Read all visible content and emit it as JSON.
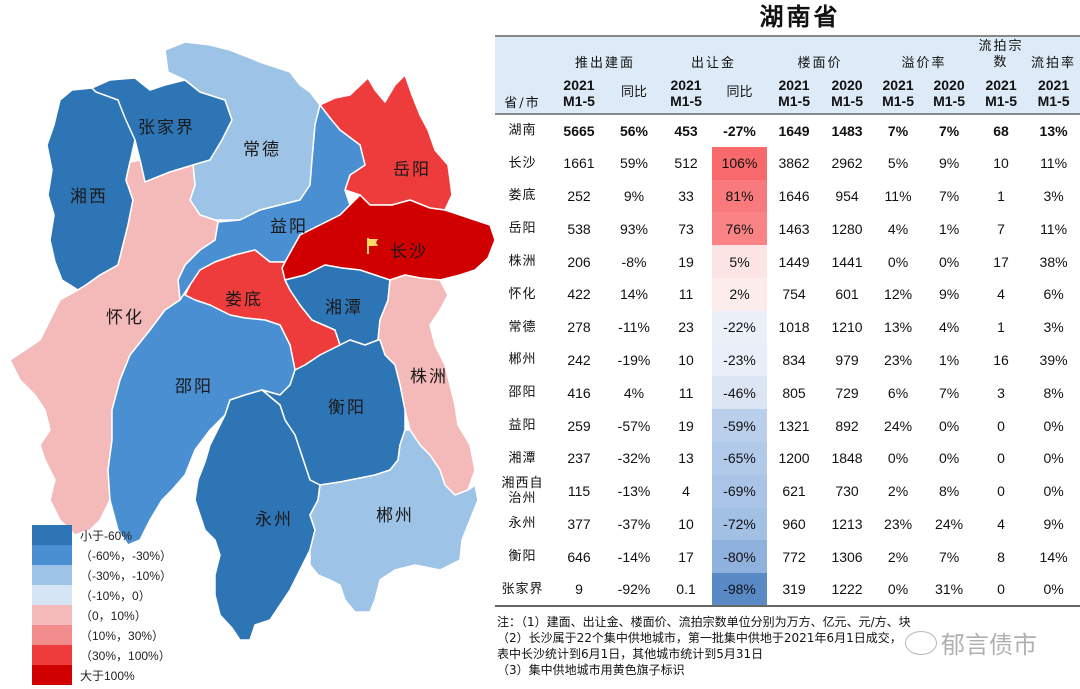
{
  "title": "湖南省",
  "colors": {
    "lt_neg60": "#2e75b6",
    "neg60_neg30": "#4a8fd1",
    "neg30_neg10": "#9dc3e6",
    "neg10_0": "#d6e5f5",
    "0_10": "#f4b9b9",
    "10_30": "#f28b8b",
    "30_100": "#ee3b3b",
    "gt_100": "#d00000",
    "flag": "#ffd966",
    "header_bg": "#ddeaf7"
  },
  "map": {
    "regions": [
      {
        "id": "xiangxi",
        "name": "湘西",
        "bin": "lt_neg60",
        "color": "#2e75b6"
      },
      {
        "id": "zhangjiajie",
        "name": "张家界",
        "bin": "lt_neg60",
        "color": "#2e75b6"
      },
      {
        "id": "changde",
        "name": "常德",
        "bin": "neg30_neg10",
        "color": "#9dc3e6"
      },
      {
        "id": "yueyang",
        "name": "岳阳",
        "bin": "30_100",
        "color": "#ee3b3b"
      },
      {
        "id": "yiyang",
        "name": "益阳",
        "bin": "neg60_neg30",
        "color": "#4a8fd1"
      },
      {
        "id": "changsha",
        "name": "长沙",
        "bin": "gt_100",
        "color": "#d00000",
        "flag": true
      },
      {
        "id": "huaihua",
        "name": "怀化",
        "bin": "0_10",
        "color": "#f4b9b9"
      },
      {
        "id": "loudi",
        "name": "娄底",
        "bin": "30_100",
        "color": "#ee3b3b"
      },
      {
        "id": "xiangtan",
        "name": "湘潭",
        "bin": "lt_neg60",
        "color": "#2e75b6"
      },
      {
        "id": "zhuzhou",
        "name": "株洲",
        "bin": "0_10",
        "color": "#f4b9b9"
      },
      {
        "id": "shaoyang",
        "name": "邵阳",
        "bin": "neg60_neg30",
        "color": "#4a8fd1"
      },
      {
        "id": "hengyang",
        "name": "衡阳",
        "bin": "lt_neg60",
        "color": "#2e75b6"
      },
      {
        "id": "yongzhou",
        "name": "永州",
        "bin": "lt_neg60",
        "color": "#2e75b6"
      },
      {
        "id": "chenzhou",
        "name": "郴州",
        "bin": "neg30_neg10",
        "color": "#9dc3e6"
      }
    ]
  },
  "legend": [
    {
      "label": "小于-60%",
      "color": "#2e75b6"
    },
    {
      "label": "（-60%，-30%）",
      "color": "#4a8fd1"
    },
    {
      "label": "（-30%，-10%）",
      "color": "#9dc3e6"
    },
    {
      "label": "（-10%，0）",
      "color": "#d6e5f5"
    },
    {
      "label": "（0，10%）",
      "color": "#f4b9b9"
    },
    {
      "label": "（10%，30%）",
      "color": "#f28b8b"
    },
    {
      "label": "（30%，100%）",
      "color": "#ee3b3b"
    },
    {
      "label": "大于100%",
      "color": "#d00000"
    }
  ],
  "table": {
    "header": {
      "province": "省/市",
      "groups": [
        "推出建面",
        "出让金",
        "楼面价",
        "溢价率",
        "流拍宗数",
        "流拍率"
      ],
      "sub": [
        "2021 M1-5",
        "同比",
        "2021 M1-5",
        "同比",
        "2021 M1-5",
        "2020 M1-5",
        "2021 M1-5",
        "2020 M1-5",
        "2021 M1-5",
        "2021 M1-5"
      ]
    },
    "rows": [
      {
        "name": "湖南",
        "area": "5665",
        "area_yoy": "56%",
        "fee": "453",
        "fee_yoy": "-27%",
        "price21": "1649",
        "price20": "1483",
        "prem21": "7%",
        "prem20": "7%",
        "fail": "68",
        "fail_rate": "13%",
        "yoy_color": "#ffffff"
      },
      {
        "name": "长沙",
        "area": "1661",
        "area_yoy": "59%",
        "fee": "512",
        "fee_yoy": "106%",
        "price21": "3862",
        "price20": "2962",
        "prem21": "5%",
        "prem20": "9%",
        "fail": "10",
        "fail_rate": "11%",
        "yoy_color": "#f8696b"
      },
      {
        "name": "娄底",
        "area": "252",
        "area_yoy": "9%",
        "fee": "33",
        "fee_yoy": "81%",
        "price21": "1646",
        "price20": "954",
        "prem21": "11%",
        "prem20": "7%",
        "fail": "1",
        "fail_rate": "3%",
        "yoy_color": "#f97a7c"
      },
      {
        "name": "岳阳",
        "area": "538",
        "area_yoy": "93%",
        "fee": "73",
        "fee_yoy": "76%",
        "price21": "1463",
        "price20": "1280",
        "prem21": "4%",
        "prem20": "1%",
        "fail": "7",
        "fail_rate": "11%",
        "yoy_color": "#f98385"
      },
      {
        "name": "株洲",
        "area": "206",
        "area_yoy": "-8%",
        "fee": "19",
        "fee_yoy": "5%",
        "price21": "1449",
        "price20": "1441",
        "prem21": "0%",
        "prem20": "0%",
        "fail": "17",
        "fail_rate": "38%",
        "yoy_color": "#fce3e4"
      },
      {
        "name": "怀化",
        "area": "422",
        "area_yoy": "14%",
        "fee": "11",
        "fee_yoy": "2%",
        "price21": "754",
        "price20": "601",
        "prem21": "12%",
        "prem20": "9%",
        "fail": "4",
        "fail_rate": "6%",
        "yoy_color": "#fcecec"
      },
      {
        "name": "常德",
        "area": "278",
        "area_yoy": "-11%",
        "fee": "23",
        "fee_yoy": "-22%",
        "price21": "1018",
        "price20": "1210",
        "prem21": "13%",
        "prem20": "4%",
        "fail": "1",
        "fail_rate": "3%",
        "yoy_color": "#eaeff8"
      },
      {
        "name": "郴州",
        "area": "242",
        "area_yoy": "-19%",
        "fee": "10",
        "fee_yoy": "-23%",
        "price21": "834",
        "price20": "979",
        "prem21": "23%",
        "prem20": "1%",
        "fail": "16",
        "fail_rate": "39%",
        "yoy_color": "#e9eef8"
      },
      {
        "name": "邵阳",
        "area": "416",
        "area_yoy": "4%",
        "fee": "11",
        "fee_yoy": "-46%",
        "price21": "805",
        "price20": "729",
        "prem21": "6%",
        "prem20": "7%",
        "fail": "3",
        "fail_rate": "8%",
        "yoy_color": "#dbe5f4"
      },
      {
        "name": "益阳",
        "area": "259",
        "area_yoy": "-57%",
        "fee": "19",
        "fee_yoy": "-59%",
        "price21": "1321",
        "price20": "892",
        "prem21": "24%",
        "prem20": "0%",
        "fail": "0",
        "fail_rate": "0%",
        "yoy_color": "#b9cfeb"
      },
      {
        "name": "湘潭",
        "area": "237",
        "area_yoy": "-32%",
        "fee": "13",
        "fee_yoy": "-65%",
        "price21": "1200",
        "price20": "1848",
        "prem21": "0%",
        "prem20": "0%",
        "fail": "0",
        "fail_rate": "0%",
        "yoy_color": "#b2caea"
      },
      {
        "name": "湘西自治州",
        "area": "115",
        "area_yoy": "-13%",
        "fee": "4",
        "fee_yoy": "-69%",
        "price21": "621",
        "price20": "730",
        "prem21": "2%",
        "prem20": "8%",
        "fail": "0",
        "fail_rate": "0%",
        "yoy_color": "#a9c4e6"
      },
      {
        "name": "永州",
        "area": "377",
        "area_yoy": "-37%",
        "fee": "10",
        "fee_yoy": "-72%",
        "price21": "960",
        "price20": "1213",
        "prem21": "23%",
        "prem20": "24%",
        "fail": "4",
        "fail_rate": "9%",
        "yoy_color": "#a2bfe4"
      },
      {
        "name": "衡阳",
        "area": "646",
        "area_yoy": "-14%",
        "fee": "17",
        "fee_yoy": "-80%",
        "price21": "772",
        "price20": "1306",
        "prem21": "2%",
        "prem20": "7%",
        "fail": "8",
        "fail_rate": "14%",
        "yoy_color": "#8fb1de"
      },
      {
        "name": "张家界",
        "area": "9",
        "area_yoy": "-92%",
        "fee": "0.1",
        "fee_yoy": "-98%",
        "price21": "319",
        "price20": "1222",
        "prem21": "0%",
        "prem20": "31%",
        "fail": "0",
        "fail_rate": "0%",
        "yoy_color": "#5a8ac6"
      }
    ]
  },
  "notes": [
    "注：（1）建面、出让金、楼面价、流拍宗数单位分别为万方、亿元、元/方、块",
    "（2）长沙属于22个集中供地城市，第一批集中供地于2021年6月1日成交，",
    "表中长沙统计到6月1日，其他城市统计到5月31日",
    "（3）集中供地城市用黄色旗子标识"
  ],
  "watermark": "郁言债市"
}
